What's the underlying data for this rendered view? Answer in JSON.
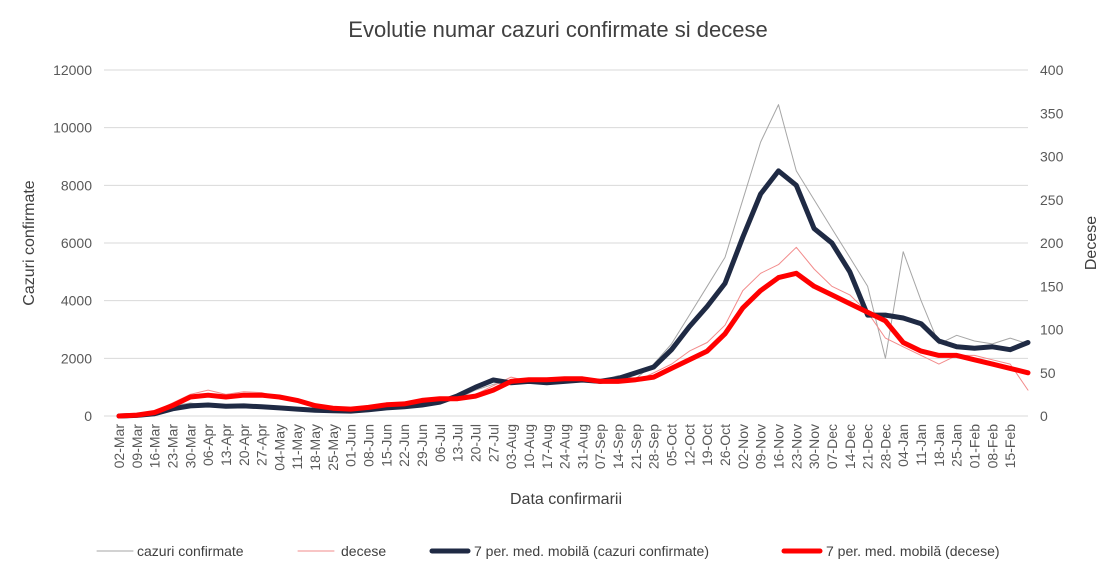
{
  "chart_data": {
    "type": "line",
    "title": "Evolutie numar cazuri confirmate si decese",
    "xlabel": "Data confirmarii",
    "ylabel_left": "Cazuri confirmate",
    "ylabel_right": "Decese",
    "ylim_left": [
      0,
      12000
    ],
    "ylim_right": [
      0,
      400
    ],
    "yticks_left": [
      "0",
      "2000",
      "4000",
      "6000",
      "8000",
      "10000",
      "12000"
    ],
    "yticks_right": [
      "0",
      "50",
      "100",
      "150",
      "200",
      "250",
      "300",
      "350",
      "400"
    ],
    "x_tick_labels": [
      "02-Mar",
      "09-Mar",
      "16-Mar",
      "23-Mar",
      "30-Mar",
      "06-Apr",
      "13-Apr",
      "20-Apr",
      "27-Apr",
      "04-May",
      "11-May",
      "18-May",
      "25-May",
      "01-Jun",
      "08-Jun",
      "15-Jun",
      "22-Jun",
      "29-Jun",
      "06-Jul",
      "13-Jul",
      "20-Jul",
      "27-Jul",
      "03-Aug",
      "10-Aug",
      "17-Aug",
      "24-Aug",
      "31-Aug",
      "07-Sep",
      "14-Sep",
      "21-Sep",
      "28-Sep",
      "05-Oct",
      "12-Oct",
      "19-Oct",
      "26-Oct",
      "02-Nov",
      "09-Nov",
      "16-Nov",
      "23-Nov",
      "30-Nov",
      "07-Dec",
      "14-Dec",
      "21-Dec",
      "28-Dec",
      "04-Jan",
      "11-Jan",
      "18-Jan",
      "25-Jan",
      "01-Feb",
      "08-Feb",
      "15-Feb"
    ],
    "grid": true,
    "legend_position": "bottom",
    "series": [
      {
        "name": "cazuri confirmate",
        "axis": "left",
        "color": "#a6a6a6",
        "style": "thin",
        "x": [
          "02-Mar",
          "09-Mar",
          "16-Mar",
          "23-Mar",
          "30-Mar",
          "06-Apr",
          "13-Apr",
          "20-Apr",
          "27-Apr",
          "04-May",
          "11-May",
          "18-May",
          "25-May",
          "01-Jun",
          "08-Jun",
          "15-Jun",
          "22-Jun",
          "29-Jun",
          "06-Jul",
          "13-Jul",
          "20-Jul",
          "27-Jul",
          "03-Aug",
          "10-Aug",
          "17-Aug",
          "24-Aug",
          "31-Aug",
          "07-Sep",
          "14-Sep",
          "21-Sep",
          "28-Sep",
          "05-Oct",
          "12-Oct",
          "19-Oct",
          "26-Oct",
          "02-Nov",
          "09-Nov",
          "16-Nov",
          "23-Nov",
          "30-Nov",
          "07-Dec",
          "14-Dec",
          "21-Dec",
          "28-Dec",
          "04-Jan",
          "11-Jan",
          "18-Jan",
          "25-Jan",
          "01-Feb",
          "08-Feb",
          "15-Feb",
          "22-Feb"
        ],
        "values": [
          10,
          50,
          150,
          350,
          450,
          350,
          400,
          300,
          350,
          300,
          220,
          180,
          150,
          120,
          200,
          300,
          350,
          400,
          500,
          600,
          900,
          1100,
          1200,
          1150,
          1300,
          1250,
          1250,
          1200,
          1400,
          1300,
          1800,
          2500,
          3500,
          4500,
          5500,
          7500,
          9500,
          10800,
          8500,
          7500,
          6500,
          5500,
          4500,
          2000,
          5700,
          4000,
          2500,
          2800,
          2600,
          2500,
          2700,
          2500
        ]
      },
      {
        "name": "decese",
        "axis": "right",
        "color": "#f28b8b",
        "style": "thin",
        "x": [
          "02-Mar",
          "09-Mar",
          "16-Mar",
          "23-Mar",
          "30-Mar",
          "06-Apr",
          "13-Apr",
          "20-Apr",
          "27-Apr",
          "04-May",
          "11-May",
          "18-May",
          "25-May",
          "01-Jun",
          "08-Jun",
          "15-Jun",
          "22-Jun",
          "29-Jun",
          "06-Jul",
          "13-Jul",
          "20-Jul",
          "27-Jul",
          "03-Aug",
          "10-Aug",
          "17-Aug",
          "24-Aug",
          "31-Aug",
          "07-Sep",
          "14-Sep",
          "21-Sep",
          "28-Sep",
          "05-Oct",
          "12-Oct",
          "19-Oct",
          "26-Oct",
          "02-Nov",
          "09-Nov",
          "16-Nov",
          "23-Nov",
          "30-Nov",
          "07-Dec",
          "14-Dec",
          "21-Dec",
          "28-Dec",
          "04-Jan",
          "11-Jan",
          "18-Jan",
          "25-Jan",
          "01-Feb",
          "08-Feb",
          "15-Feb",
          "22-Feb"
        ],
        "values": [
          0,
          2,
          5,
          15,
          25,
          30,
          25,
          28,
          27,
          22,
          18,
          10,
          8,
          6,
          10,
          15,
          12,
          18,
          22,
          20,
          25,
          35,
          45,
          40,
          42,
          45,
          45,
          40,
          45,
          40,
          50,
          60,
          75,
          85,
          105,
          145,
          165,
          175,
          195,
          170,
          150,
          140,
          120,
          90,
          80,
          70,
          60,
          70,
          70,
          65,
          60,
          30
        ]
      },
      {
        "name": "7 per. med. mobilă (cazuri confirmate)",
        "axis": "left",
        "color": "#1f2a44",
        "style": "thick",
        "x": [
          "02-Mar",
          "09-Mar",
          "16-Mar",
          "23-Mar",
          "30-Mar",
          "06-Apr",
          "13-Apr",
          "20-Apr",
          "27-Apr",
          "04-May",
          "11-May",
          "18-May",
          "25-May",
          "01-Jun",
          "08-Jun",
          "15-Jun",
          "22-Jun",
          "29-Jun",
          "06-Jul",
          "13-Jul",
          "20-Jul",
          "27-Jul",
          "03-Aug",
          "10-Aug",
          "17-Aug",
          "24-Aug",
          "31-Aug",
          "07-Sep",
          "14-Sep",
          "21-Sep",
          "28-Sep",
          "05-Oct",
          "12-Oct",
          "19-Oct",
          "26-Oct",
          "02-Nov",
          "09-Nov",
          "16-Nov",
          "23-Nov",
          "30-Nov",
          "07-Dec",
          "14-Dec",
          "21-Dec",
          "28-Dec",
          "04-Jan",
          "11-Jan",
          "18-Jan",
          "25-Jan",
          "01-Feb",
          "08-Feb",
          "15-Feb",
          "22-Feb"
        ],
        "values": [
          0,
          20,
          80,
          250,
          350,
          380,
          340,
          350,
          320,
          280,
          240,
          200,
          180,
          170,
          220,
          280,
          320,
          380,
          480,
          700,
          1000,
          1250,
          1150,
          1200,
          1150,
          1200,
          1250,
          1200,
          1300,
          1500,
          1700,
          2300,
          3100,
          3800,
          4600,
          6200,
          7700,
          8500,
          8000,
          6500,
          6000,
          5000,
          3500,
          3500,
          3400,
          3200,
          2600,
          2400,
          2350,
          2400,
          2300,
          2550
        ]
      },
      {
        "name": "7 per. med. mobilă (decese)",
        "axis": "right",
        "color": "#ff0000",
        "style": "thick",
        "x": [
          "02-Mar",
          "09-Mar",
          "16-Mar",
          "23-Mar",
          "30-Mar",
          "06-Apr",
          "13-Apr",
          "20-Apr",
          "27-Apr",
          "04-May",
          "11-May",
          "18-May",
          "25-May",
          "01-Jun",
          "08-Jun",
          "15-Jun",
          "22-Jun",
          "29-Jun",
          "06-Jul",
          "13-Jul",
          "20-Jul",
          "27-Jul",
          "03-Aug",
          "10-Aug",
          "17-Aug",
          "24-Aug",
          "31-Aug",
          "07-Sep",
          "14-Sep",
          "21-Sep",
          "28-Sep",
          "05-Oct",
          "12-Oct",
          "19-Oct",
          "26-Oct",
          "02-Nov",
          "09-Nov",
          "16-Nov",
          "23-Nov",
          "30-Nov",
          "07-Dec",
          "14-Dec",
          "21-Dec",
          "28-Dec",
          "04-Jan",
          "11-Jan",
          "18-Jan",
          "25-Jan",
          "01-Feb",
          "08-Feb",
          "15-Feb",
          "22-Feb"
        ],
        "values": [
          0,
          1,
          4,
          12,
          22,
          24,
          22,
          24,
          24,
          22,
          18,
          12,
          9,
          8,
          10,
          13,
          14,
          18,
          20,
          20,
          23,
          30,
          40,
          42,
          42,
          43,
          43,
          40,
          40,
          42,
          45,
          55,
          65,
          75,
          95,
          125,
          145,
          160,
          165,
          150,
          140,
          130,
          120,
          110,
          85,
          75,
          70,
          70,
          65,
          60,
          55,
          50
        ]
      }
    ]
  }
}
